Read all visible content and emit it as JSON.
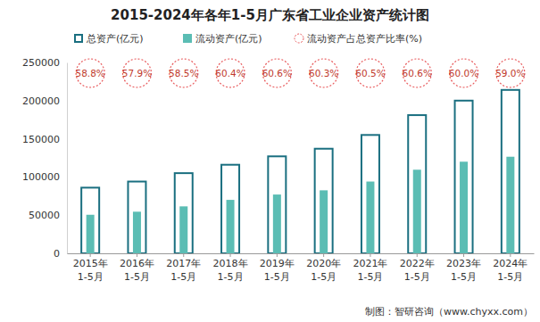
{
  "chart_data": {
    "type": "bar",
    "title": "2015-2024年各年1-5月广东省工业企业资产统计图",
    "categories": [
      "2015年\n1-5月",
      "2016年\n1-5月",
      "2017年\n1-5月",
      "2018年\n1-5月",
      "2019年\n1-5月",
      "2020年\n1-5月",
      "2021年\n1-5月",
      "2022年\n1-5月",
      "2023年\n1-5月",
      "2024年\n1-5月"
    ],
    "series": [
      {
        "name": "总资产(亿元)",
        "color": "#1a6f80",
        "values": [
          86000,
          94000,
          105000,
          116000,
          127000,
          137000,
          155000,
          181000,
          200000,
          214000
        ]
      },
      {
        "name": "流动资产(亿元)",
        "color": "#5bbdb4",
        "values": [
          50500,
          54500,
          61500,
          70000,
          77000,
          82500,
          94000,
          109500,
          120000,
          126500
        ]
      },
      {
        "name": "流动资产占总资产比率(%)",
        "type": "label",
        "marker": "circle",
        "color": "#e8585a",
        "values": [
          58.8,
          57.9,
          58.5,
          60.4,
          60.6,
          60.3,
          60.5,
          60.6,
          60.0,
          59.0
        ],
        "value_labels": [
          "58.8%",
          "57.9%",
          "58.5%",
          "60.4%",
          "60.6%",
          "60.3%",
          "60.5%",
          "60.6%",
          "60.0%",
          "59.0%"
        ]
      }
    ],
    "ylim": [
      0,
      250000
    ],
    "yticks": [
      0,
      50000,
      100000,
      150000,
      200000,
      250000
    ],
    "grid": false,
    "legend": "top",
    "annotations": [
      "制图：智研咨询（www.chyxx.com）"
    ]
  }
}
